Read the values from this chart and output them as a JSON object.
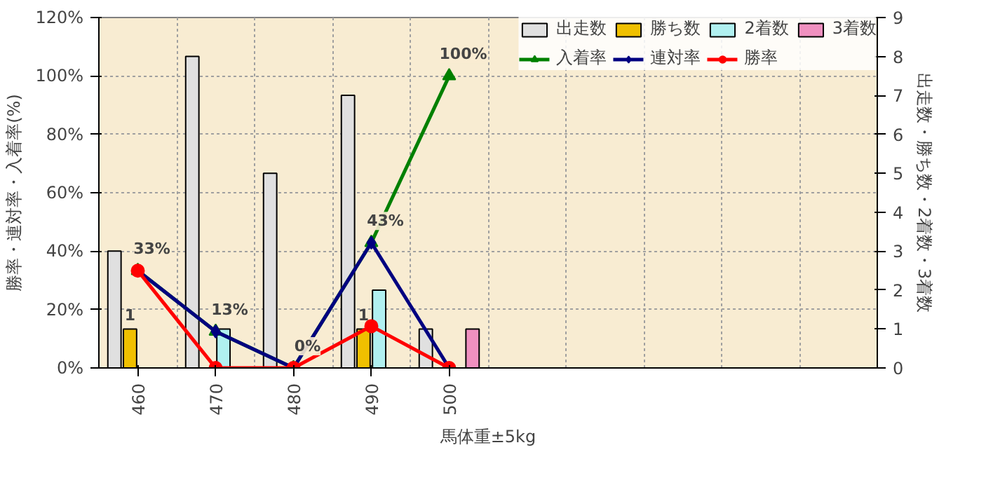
{
  "chart_data": {
    "type": "bar",
    "xlabel": "馬体重±5kg",
    "ylabel": "勝率・連対率・入着率(%)",
    "y2label": "出走数・勝ち数・2着数・3着数",
    "categories": [
      "460",
      "470",
      "480",
      "490",
      "500",
      null,
      null,
      null,
      null,
      null
    ],
    "series": [
      {
        "name": "出走数",
        "axis": "y2",
        "color": "#e0e0e0",
        "values": [
          3,
          8,
          5,
          7,
          1,
          null,
          null,
          null,
          null,
          null
        ]
      },
      {
        "name": "勝ち数",
        "axis": "y2",
        "color": "#f0c000",
        "values": [
          1,
          null,
          null,
          1,
          null,
          null,
          null,
          null,
          null,
          null
        ],
        "value_labels": [
          "1",
          null,
          null,
          "1",
          null,
          null,
          null,
          null,
          null,
          null
        ]
      },
      {
        "name": "2着数",
        "axis": "y2",
        "color": "#b0f0f0",
        "values": [
          null,
          1,
          null,
          2,
          null,
          null,
          null,
          null,
          null,
          null
        ]
      },
      {
        "name": "3着数",
        "axis": "y2",
        "color": "#f090c0",
        "values": [
          null,
          null,
          null,
          null,
          1,
          null,
          null,
          null,
          null,
          null
        ]
      },
      {
        "name": "入着率",
        "type": "line",
        "color": "#008000",
        "marker": "triangle",
        "values": [
          33.3,
          12.5,
          0,
          42.9,
          100,
          null,
          null,
          null,
          null,
          null
        ],
        "value_labels": [
          "33%",
          "13%",
          "0%",
          "43%",
          "100%",
          null,
          null,
          null,
          null,
          null
        ]
      },
      {
        "name": "連対率",
        "type": "line",
        "color": "#000080",
        "marker": "diamond",
        "values": [
          33.3,
          12.5,
          0,
          42.9,
          0,
          null,
          null,
          null,
          null,
          null
        ]
      },
      {
        "name": "勝率",
        "type": "line",
        "color": "#ff0000",
        "marker": "circle",
        "values": [
          33.3,
          0,
          0,
          14.3,
          0,
          null,
          null,
          null,
          null,
          null
        ]
      }
    ],
    "ylim": [
      0,
      120
    ],
    "yticks": [
      {
        "value": 0,
        "label": "0%"
      },
      {
        "value": 20,
        "label": "20%"
      },
      {
        "value": 40,
        "label": "40%"
      },
      {
        "value": 60,
        "label": "60%"
      },
      {
        "value": 80,
        "label": "80%"
      },
      {
        "value": 100,
        "label": "100%"
      },
      {
        "value": 120,
        "label": "120%"
      }
    ],
    "y2lim": [
      0,
      9
    ],
    "y2ticks": [
      0,
      1,
      2,
      3,
      4,
      5,
      6,
      7,
      8,
      9
    ],
    "grid": true,
    "legend": "top right",
    "line_style": "solid"
  }
}
